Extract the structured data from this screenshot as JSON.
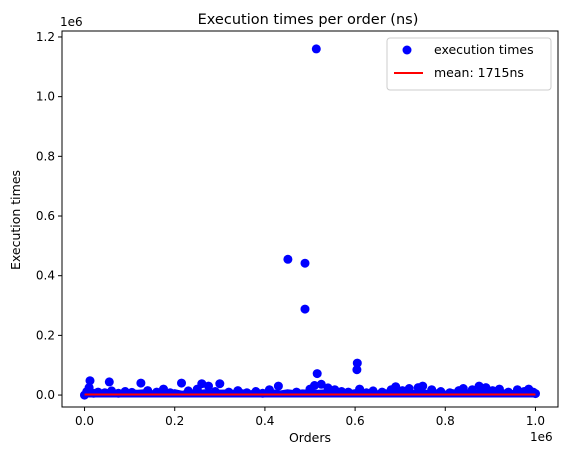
{
  "chart_data": {
    "type": "scatter",
    "title": "Execution times per order (ns)",
    "xlabel": "Orders",
    "ylabel": "Execution times",
    "x_offset_label": "1e6",
    "y_offset_label": "1e6",
    "xlim": [
      -0.05,
      1.05
    ],
    "ylim": [
      -0.04,
      1.22
    ],
    "x_ticks": [
      0.0,
      0.2,
      0.4,
      0.6,
      0.8,
      1.0
    ],
    "x_tick_labels": [
      "0.0",
      "0.2",
      "0.4",
      "0.6",
      "0.8",
      "1.0"
    ],
    "y_ticks": [
      0.0,
      0.2,
      0.4,
      0.6,
      0.8,
      1.0,
      1.2
    ],
    "y_tick_labels": [
      "0.0",
      "0.2",
      "0.4",
      "0.6",
      "0.8",
      "1.0",
      "1.2"
    ],
    "grid": false,
    "legend_position": "top-right",
    "series": [
      {
        "name": "execution times",
        "kind": "scatter",
        "color": "#0000ff",
        "points": [
          [
            0.0,
            0.0
          ],
          [
            0.005,
            0.012
          ],
          [
            0.01,
            0.025
          ],
          [
            0.012,
            0.048
          ],
          [
            0.02,
            0.006
          ],
          [
            0.03,
            0.01
          ],
          [
            0.045,
            0.008
          ],
          [
            0.055,
            0.044
          ],
          [
            0.06,
            0.014
          ],
          [
            0.075,
            0.006
          ],
          [
            0.09,
            0.012
          ],
          [
            0.105,
            0.009
          ],
          [
            0.125,
            0.04
          ],
          [
            0.14,
            0.015
          ],
          [
            0.16,
            0.01
          ],
          [
            0.175,
            0.02
          ],
          [
            0.19,
            0.008
          ],
          [
            0.215,
            0.04
          ],
          [
            0.23,
            0.014
          ],
          [
            0.25,
            0.02
          ],
          [
            0.26,
            0.038
          ],
          [
            0.275,
            0.03
          ],
          [
            0.29,
            0.012
          ],
          [
            0.3,
            0.038
          ],
          [
            0.32,
            0.01
          ],
          [
            0.34,
            0.015
          ],
          [
            0.36,
            0.008
          ],
          [
            0.38,
            0.012
          ],
          [
            0.395,
            0.006
          ],
          [
            0.41,
            0.018
          ],
          [
            0.43,
            0.03
          ],
          [
            0.451,
            0.455
          ],
          [
            0.47,
            0.01
          ],
          [
            0.489,
            0.288
          ],
          [
            0.489,
            0.442
          ],
          [
            0.5,
            0.02
          ],
          [
            0.51,
            0.032
          ],
          [
            0.514,
            1.16
          ],
          [
            0.516,
            0.072
          ],
          [
            0.525,
            0.036
          ],
          [
            0.54,
            0.024
          ],
          [
            0.555,
            0.018
          ],
          [
            0.57,
            0.012
          ],
          [
            0.585,
            0.01
          ],
          [
            0.604,
            0.085
          ],
          [
            0.605,
            0.107
          ],
          [
            0.61,
            0.02
          ],
          [
            0.625,
            0.008
          ],
          [
            0.64,
            0.014
          ],
          [
            0.66,
            0.01
          ],
          [
            0.68,
            0.018
          ],
          [
            0.69,
            0.028
          ],
          [
            0.705,
            0.015
          ],
          [
            0.72,
            0.022
          ],
          [
            0.74,
            0.025
          ],
          [
            0.75,
            0.03
          ],
          [
            0.77,
            0.018
          ],
          [
            0.79,
            0.012
          ],
          [
            0.81,
            0.008
          ],
          [
            0.83,
            0.015
          ],
          [
            0.84,
            0.022
          ],
          [
            0.86,
            0.018
          ],
          [
            0.875,
            0.03
          ],
          [
            0.89,
            0.025
          ],
          [
            0.905,
            0.015
          ],
          [
            0.92,
            0.02
          ],
          [
            0.94,
            0.01
          ],
          [
            0.96,
            0.018
          ],
          [
            0.975,
            0.012
          ],
          [
            0.985,
            0.02
          ],
          [
            0.995,
            0.01
          ],
          [
            1.0,
            0.005
          ]
        ]
      },
      {
        "name": "mean: 1715ns",
        "kind": "line",
        "color": "#ff0000",
        "x": [
          0.0,
          1.0
        ],
        "y": [
          0.001715,
          0.001715
        ]
      }
    ]
  }
}
